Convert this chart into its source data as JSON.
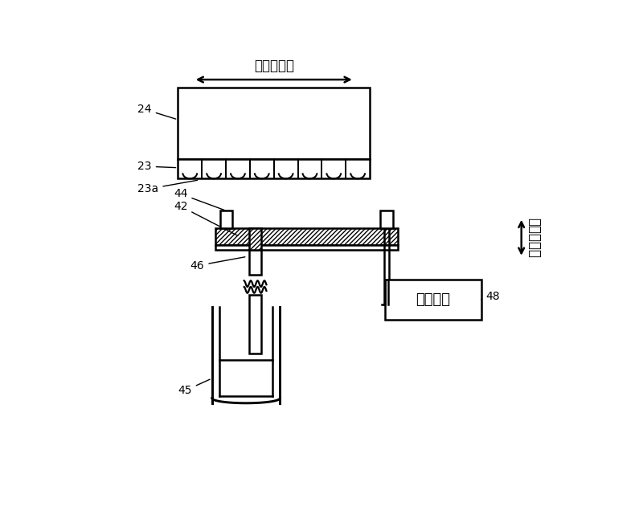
{
  "bg_color": "#ffffff",
  "line_color": "#000000",
  "title_arrow_text": "头移动方向",
  "side_arrow_text": "盖移动方向",
  "label_24": "24",
  "label_23": "23",
  "label_23a": "23a",
  "label_44": "44",
  "label_42": "42",
  "label_46": "46",
  "label_45": "45",
  "label_48": "48",
  "label_box": "升降装置",
  "font_size_labels": 10,
  "font_size_chinese": 12,
  "font_size_box": 13
}
